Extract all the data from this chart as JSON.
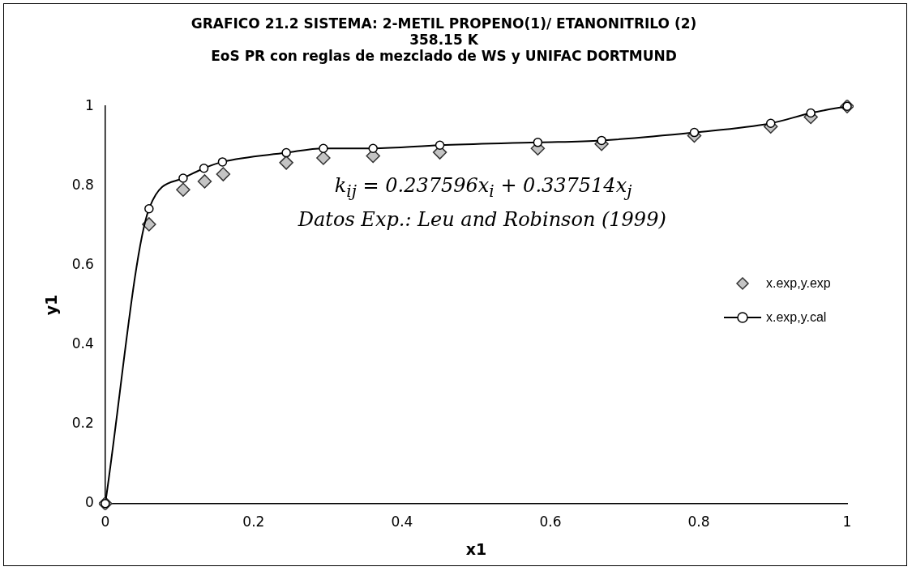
{
  "chart_data": {
    "type": "scatter",
    "title": "GRAFICO 21.2 SISTEMA: 2-METIL PROPENO(1)/ ETANONITRILO (2)\n358.15 K",
    "subtitle": "EoS PR con reglas de mezclado de WS y UNIFAC DORTMUND",
    "xlabel": "x1",
    "ylabel": "y1",
    "annotations": [
      "k$_{ij}$ = 0.237596x$_{i}$ + 0.337514x$_{j}$",
      "Datos Exp.: Leu and Robinson (1999)"
    ],
    "xlim": [
      0,
      1
    ],
    "xticks": [
      0,
      0.2,
      0.4,
      0.6,
      0.8,
      1
    ],
    "ylim": [
      0,
      1
    ],
    "yticks": [
      0,
      0.2,
      0.4,
      0.6,
      0.8,
      1
    ],
    "grid": false,
    "legend": "right",
    "series": [
      {
        "name": "x.exp,y.exp",
        "type": "scatter",
        "marker": "diamond",
        "color": "#333333",
        "x": [
          0,
          0.059,
          0.105,
          0.134,
          0.159,
          0.244,
          0.294,
          0.361,
          0.451,
          0.583,
          0.669,
          0.794,
          0.897,
          0.951,
          1.0
        ],
        "values": [
          0,
          0.703,
          0.79,
          0.811,
          0.829,
          0.858,
          0.87,
          0.875,
          0.884,
          0.894,
          0.905,
          0.926,
          0.949,
          0.973,
          1.0
        ]
      },
      {
        "name": "x.exp,y.cal",
        "type": "line",
        "marker": "circle",
        "line_style": "solid",
        "color": "#000000",
        "x": [
          0,
          0.059,
          0.105,
          0.133,
          0.158,
          0.244,
          0.294,
          0.361,
          0.451,
          0.583,
          0.669,
          0.794,
          0.897,
          0.951,
          1.0
        ],
        "values": [
          0,
          0.742,
          0.819,
          0.844,
          0.86,
          0.883,
          0.894,
          0.894,
          0.902,
          0.909,
          0.914,
          0.934,
          0.957,
          0.983,
          1.0
        ]
      }
    ]
  }
}
